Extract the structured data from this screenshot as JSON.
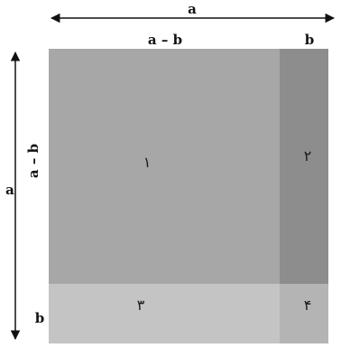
{
  "labels": {
    "top_total": "a",
    "top_left": "a – b",
    "top_right": "b",
    "left_total": "a",
    "left_upper": "a – b",
    "left_lower": "b"
  },
  "regions": [
    {
      "id": "region-1",
      "label": "۱",
      "color": "#a7a7a7"
    },
    {
      "id": "region-2",
      "label": "۲",
      "color": "#8d8d8d"
    },
    {
      "id": "region-3",
      "label": "۳",
      "color": "#c4c4c4"
    },
    {
      "id": "region-4",
      "label": "۴",
      "color": "#b4b4b4"
    }
  ]
}
